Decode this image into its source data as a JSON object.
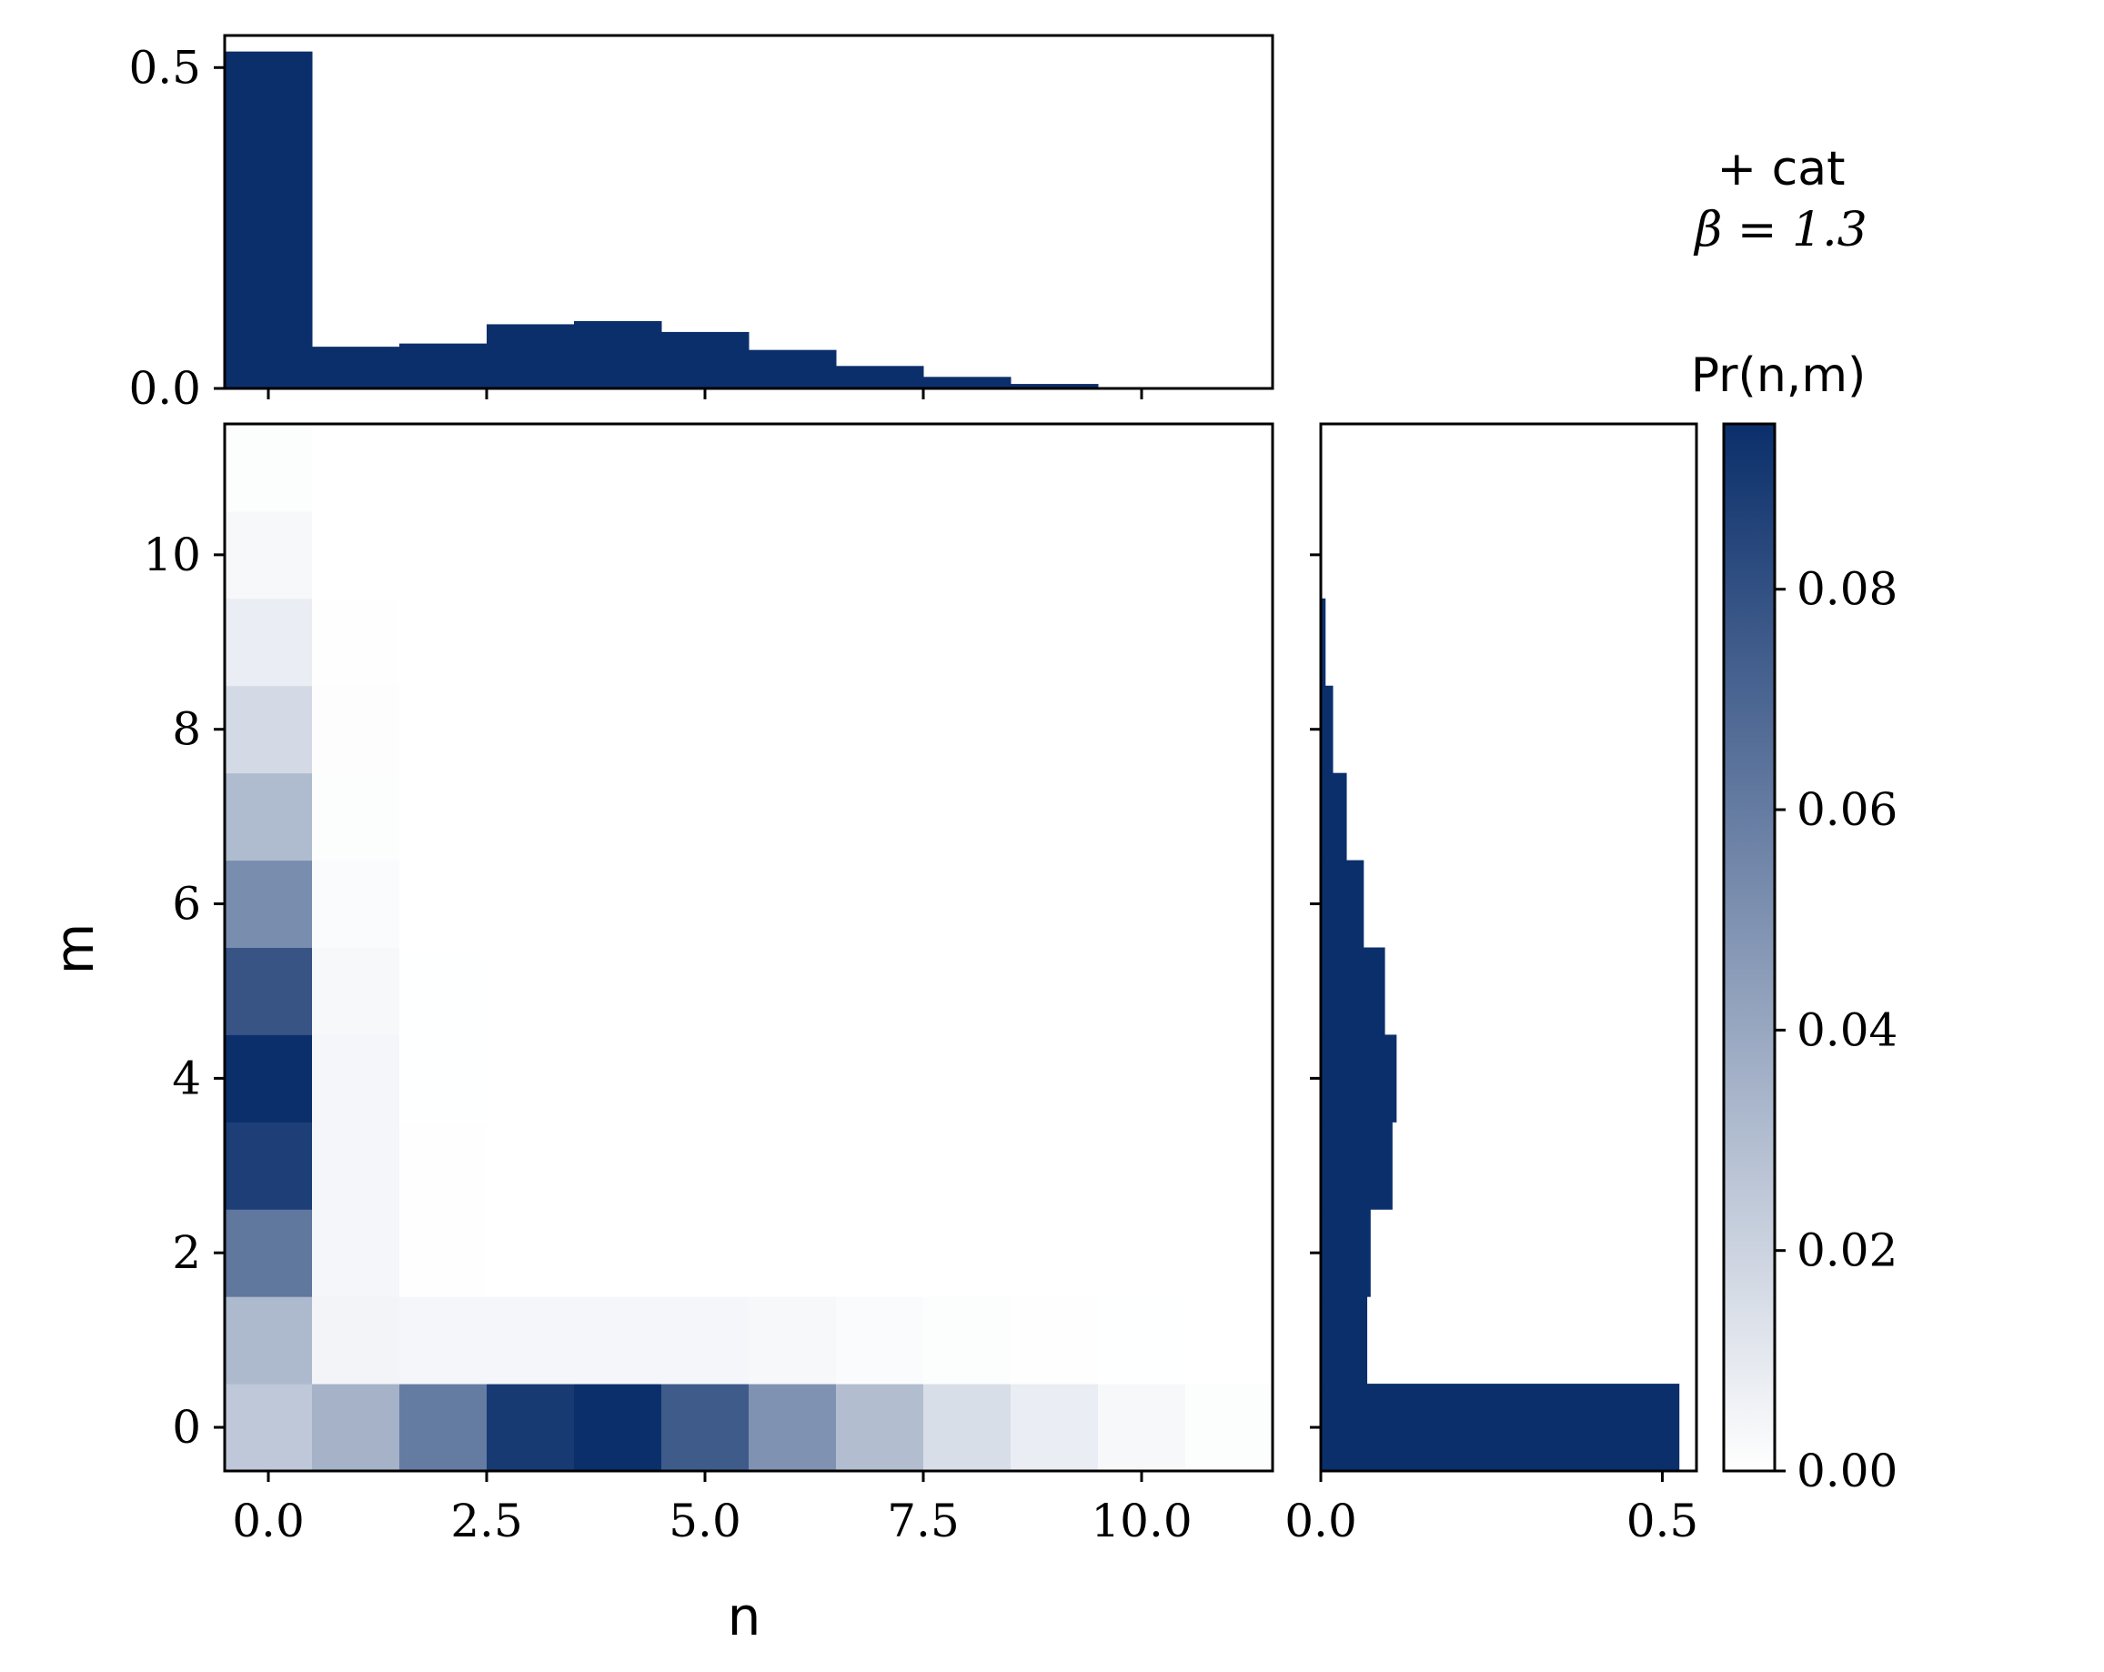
{
  "annotation": {
    "line1": "+ cat",
    "line2": "β = 1.3"
  },
  "colors": {
    "bar": "#0b2f6b",
    "cmap_low": "#ffffff",
    "cmap_high": "#0b2f6b",
    "axis": "#000000"
  },
  "chart_data": {
    "type": "heatmap",
    "xlabel": "n",
    "ylabel": "m",
    "colorbar_label": "Pr(n,m)",
    "x_tick_labels": [
      "0.0",
      "2.5",
      "5.0",
      "7.5",
      "10.0"
    ],
    "x_ticks": [
      0,
      2.5,
      5,
      7.5,
      10
    ],
    "y_tick_labels": [
      "0",
      "2",
      "4",
      "6",
      "8",
      "10"
    ],
    "y_ticks": [
      0,
      2,
      4,
      6,
      8,
      10
    ],
    "xlim": [
      -0.5,
      11.5
    ],
    "ylim": [
      -0.5,
      11.5
    ],
    "colorbar_ticks": [
      0.0,
      0.02,
      0.04,
      0.06,
      0.08
    ],
    "colorbar_tick_labels": [
      "0.00",
      "0.02",
      "0.04",
      "0.06",
      "0.08"
    ],
    "colorbar_range": [
      0.0,
      0.095
    ],
    "grid": false,
    "matrix_note": "matrix[m][n], m = 0..11 (rows), n = 0..11 (columns)",
    "matrix": [
      [
        0.025,
        0.035,
        0.06,
        0.09,
        0.095,
        0.075,
        0.05,
        0.03,
        0.015,
        0.008,
        0.003,
        0.001
      ],
      [
        0.032,
        0.005,
        0.004,
        0.004,
        0.004,
        0.004,
        0.003,
        0.002,
        0.001,
        0.0005,
        0.0002,
        0.0001
      ],
      [
        0.062,
        0.004,
        0.0003,
        0.0001,
        0,
        0,
        0,
        0,
        0,
        0,
        0,
        0
      ],
      [
        0.088,
        0.004,
        0.0003,
        0.0001,
        0,
        0,
        0,
        0,
        0,
        0,
        0,
        0
      ],
      [
        0.095,
        0.004,
        0.0002,
        0.0001,
        0,
        0,
        0,
        0,
        0,
        0,
        0,
        0
      ],
      [
        0.078,
        0.003,
        0.0002,
        0,
        0,
        0,
        0,
        0,
        0,
        0,
        0,
        0
      ],
      [
        0.052,
        0.002,
        0.0001,
        0,
        0,
        0,
        0,
        0,
        0,
        0,
        0,
        0
      ],
      [
        0.031,
        0.001,
        0.0001,
        0,
        0,
        0,
        0,
        0,
        0,
        0,
        0,
        0
      ],
      [
        0.017,
        0.0007,
        0,
        0,
        0,
        0,
        0,
        0,
        0,
        0,
        0,
        0
      ],
      [
        0.008,
        0.0003,
        0,
        0,
        0,
        0,
        0,
        0,
        0,
        0,
        0,
        0
      ],
      [
        0.003,
        0.0001,
        0,
        0,
        0,
        0,
        0,
        0,
        0,
        0,
        0,
        0
      ],
      [
        0.001,
        0,
        0,
        0,
        0,
        0,
        0,
        0,
        0,
        0,
        0,
        0
      ]
    ],
    "marginal_n": {
      "type": "bar",
      "x": [
        0,
        1,
        2,
        3,
        4,
        5,
        6,
        7,
        8,
        9,
        10,
        11
      ],
      "values": [
        0.525,
        0.065,
        0.07,
        0.1,
        0.105,
        0.088,
        0.06,
        0.035,
        0.018,
        0.007,
        0.002,
        0.0005
      ],
      "ylim": [
        0,
        0.55
      ],
      "y_ticks": [
        0.0,
        0.5
      ],
      "y_tick_labels": [
        "0.0",
        "0.5"
      ]
    },
    "marginal_m": {
      "type": "bar",
      "orientation": "horizontal",
      "y": [
        0,
        1,
        2,
        3,
        4,
        5,
        6,
        7,
        8,
        9,
        10,
        11
      ],
      "values": [
        0.525,
        0.068,
        0.073,
        0.105,
        0.111,
        0.094,
        0.063,
        0.038,
        0.018,
        0.007,
        0.002,
        0.0005
      ],
      "xlim": [
        0,
        0.55
      ],
      "x_ticks": [
        0.0,
        0.5
      ],
      "x_tick_labels": [
        "0.0",
        "0.5"
      ]
    }
  }
}
